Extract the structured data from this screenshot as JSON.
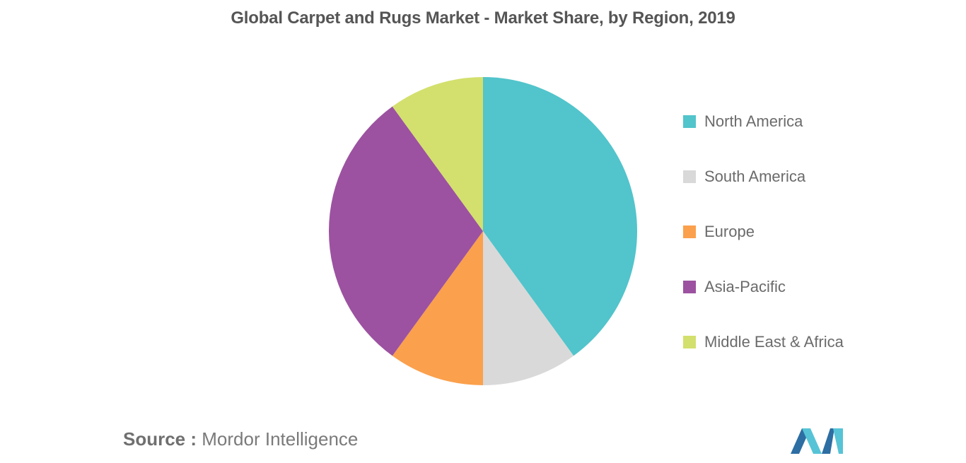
{
  "chart_data": {
    "type": "pie",
    "title": "Global Carpet and Rugs Market - Market Share, by Region, 2019",
    "legend_position": "right",
    "slices": [
      {
        "name": "North America",
        "value": 40,
        "color": "#52c4cb"
      },
      {
        "name": "South America",
        "value": 10,
        "color": "#d9d9d9"
      },
      {
        "name": "Europe",
        "value": 10,
        "color": "#fba04c"
      },
      {
        "name": "Asia-Pacific",
        "value": 30,
        "color": "#9c52a0"
      },
      {
        "name": "Middle East & Africa",
        "value": 10,
        "color": "#d3e06d"
      }
    ]
  },
  "source": {
    "label": "Source :",
    "text": "Mordor Intelligence"
  },
  "logo": {
    "icon": "mordor-intelligence-logo",
    "colors": [
      "#2d6ea3",
      "#56c4d6"
    ]
  }
}
